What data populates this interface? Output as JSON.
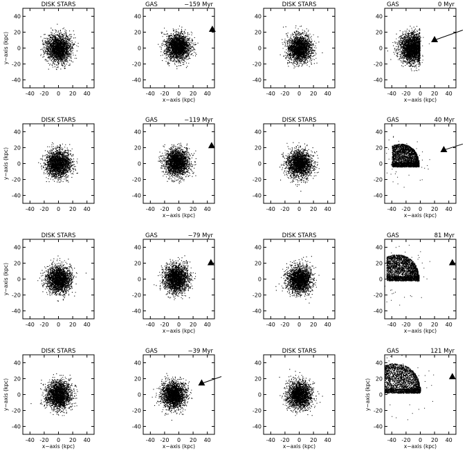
{
  "figure": {
    "x_axis_label": "x−axis (kpc)",
    "y_axis_label": "y−axis (kpc)"
  },
  "chart_data": [
    {
      "row": 0,
      "col": 0,
      "type": "scatter",
      "title": "DISK STARS",
      "time": "",
      "xlim": [
        -50,
        50
      ],
      "ylim": [
        -50,
        50
      ],
      "xticks": [
        -40,
        -20,
        0,
        20,
        40
      ],
      "yticks": [
        -40,
        -20,
        0,
        20,
        40
      ],
      "xlabel": "",
      "ylabel": "y−axis (kpc)",
      "blob": {
        "shape": "disk",
        "cx": 0,
        "cy": 0,
        "r": 15
      }
    },
    {
      "row": 0,
      "col": 1,
      "type": "scatter",
      "title": "GAS",
      "time": "−159 Myr",
      "xlim": [
        -50,
        50
      ],
      "ylim": [
        -50,
        50
      ],
      "xticks": [
        -40,
        -20,
        0,
        20,
        40
      ],
      "yticks": [
        -40,
        -20,
        0,
        20,
        40
      ],
      "xlabel": "x−axis (kpc)",
      "ylabel": "",
      "blob": {
        "shape": "disk",
        "cx": -2,
        "cy": 2,
        "r": 15
      },
      "perturber": {
        "x": 47,
        "y": 23
      }
    },
    {
      "row": 0,
      "col": 2,
      "type": "scatter",
      "title": "DISK STARS",
      "time": "",
      "xlim": [
        -50,
        50
      ],
      "ylim": [
        -50,
        50
      ],
      "xticks": [
        -40,
        -20,
        0,
        20,
        40
      ],
      "yticks": [
        -40,
        -20,
        0,
        20,
        40
      ],
      "xlabel": "",
      "ylabel": "",
      "blob": {
        "shape": "disk",
        "cx": 0,
        "cy": 0,
        "r": 15
      }
    },
    {
      "row": 0,
      "col": 3,
      "type": "scatter",
      "title": "GAS",
      "time": "0 Myr",
      "xlim": [
        -50,
        50
      ],
      "ylim": [
        -50,
        50
      ],
      "xticks": [
        -40,
        -20,
        0,
        20,
        40
      ],
      "yticks": [
        -40,
        -20,
        0,
        20,
        40
      ],
      "xlabel": "x−axis (kpc)",
      "ylabel": "",
      "blob": {
        "shape": "compressed",
        "cx": -12,
        "cy": 0,
        "r": 16
      },
      "perturber": {
        "x": 20,
        "y": 10
      },
      "trail": {
        "x": 50,
        "y": 20
      }
    },
    {
      "row": 1,
      "col": 0,
      "type": "scatter",
      "title": "DISK STARS",
      "time": "",
      "xlim": [
        -50,
        50
      ],
      "ylim": [
        -50,
        50
      ],
      "xticks": [
        -40,
        -20,
        0,
        20,
        40
      ],
      "yticks": [
        -40,
        -20,
        0,
        20,
        40
      ],
      "xlabel": "",
      "ylabel": "y−axis (kpc)",
      "blob": {
        "shape": "disk",
        "cx": 0,
        "cy": 0,
        "r": 15
      }
    },
    {
      "row": 1,
      "col": 1,
      "type": "scatter",
      "title": "GAS",
      "time": "−119 Myr",
      "xlim": [
        -50,
        50
      ],
      "ylim": [
        -50,
        50
      ],
      "xticks": [
        -40,
        -20,
        0,
        20,
        40
      ],
      "yticks": [
        -40,
        -20,
        0,
        20,
        40
      ],
      "xlabel": "x−axis (kpc)",
      "ylabel": "",
      "blob": {
        "shape": "disk",
        "cx": -3,
        "cy": 2,
        "r": 15
      },
      "perturber": {
        "x": 46,
        "y": 22
      }
    },
    {
      "row": 1,
      "col": 2,
      "type": "scatter",
      "title": "DISK STARS",
      "time": "",
      "xlim": [
        -50,
        50
      ],
      "ylim": [
        -50,
        50
      ],
      "xticks": [
        -40,
        -20,
        0,
        20,
        40
      ],
      "yticks": [
        -40,
        -20,
        0,
        20,
        40
      ],
      "xlabel": "",
      "ylabel": "",
      "blob": {
        "shape": "disk",
        "cx": 0,
        "cy": 0,
        "r": 15
      }
    },
    {
      "row": 1,
      "col": 3,
      "type": "scatter",
      "title": "GAS",
      "time": "40 Myr",
      "xlim": [
        -50,
        50
      ],
      "ylim": [
        -50,
        50
      ],
      "xticks": [
        -40,
        -20,
        0,
        20,
        40
      ],
      "yticks": [
        -40,
        -20,
        0,
        20,
        40
      ],
      "xlabel": "x−axis (kpc)",
      "ylabel": "",
      "blob": {
        "shape": "swept",
        "cx": -22,
        "cy": 4,
        "r": 20
      },
      "perturber": {
        "x": 33,
        "y": 17
      },
      "trail": {
        "x": 50,
        "y": 22
      }
    },
    {
      "row": 2,
      "col": 0,
      "type": "scatter",
      "title": "DISK STARS",
      "time": "",
      "xlim": [
        -50,
        50
      ],
      "ylim": [
        -50,
        50
      ],
      "xticks": [
        -40,
        -20,
        0,
        20,
        40
      ],
      "yticks": [
        -40,
        -20,
        0,
        20,
        40
      ],
      "xlabel": "",
      "ylabel": "y−axis (kpc)",
      "blob": {
        "shape": "disk",
        "cx": 0,
        "cy": 0,
        "r": 15
      }
    },
    {
      "row": 2,
      "col": 1,
      "type": "scatter",
      "title": "GAS",
      "time": "−79 Myr",
      "xlim": [
        -50,
        50
      ],
      "ylim": [
        -50,
        50
      ],
      "xticks": [
        -40,
        -20,
        0,
        20,
        40
      ],
      "yticks": [
        -40,
        -20,
        0,
        20,
        40
      ],
      "xlabel": "x−axis (kpc)",
      "ylabel": "",
      "blob": {
        "shape": "disk",
        "cx": -4,
        "cy": 1,
        "r": 15
      },
      "perturber": {
        "x": 45,
        "y": 20
      }
    },
    {
      "row": 2,
      "col": 2,
      "type": "scatter",
      "title": "DISK STARS",
      "time": "",
      "xlim": [
        -50,
        50
      ],
      "ylim": [
        -50,
        50
      ],
      "xticks": [
        -40,
        -20,
        0,
        20,
        40
      ],
      "yticks": [
        -40,
        -20,
        0,
        20,
        40
      ],
      "xlabel": "",
      "ylabel": "",
      "blob": {
        "shape": "disk",
        "cx": 0,
        "cy": 0,
        "r": 15
      }
    },
    {
      "row": 2,
      "col": 3,
      "type": "scatter",
      "title": "GAS",
      "time": "81 Myr",
      "xlim": [
        -50,
        50
      ],
      "ylim": [
        -50,
        50
      ],
      "xticks": [
        -40,
        -20,
        0,
        20,
        40
      ],
      "yticks": [
        -40,
        -20,
        0,
        20,
        40
      ],
      "xlabel": "x−axis (kpc)",
      "ylabel": "",
      "blob": {
        "shape": "swept",
        "cx": -26,
        "cy": 6,
        "r": 24
      },
      "perturber": {
        "x": 45,
        "y": 20
      }
    },
    {
      "row": 3,
      "col": 0,
      "type": "scatter",
      "title": "DISK STARS",
      "time": "",
      "xlim": [
        -50,
        50
      ],
      "ylim": [
        -50,
        50
      ],
      "xticks": [
        -40,
        -20,
        0,
        20,
        40
      ],
      "yticks": [
        -40,
        -20,
        0,
        20,
        40
      ],
      "xlabel": "x−axis (kpc)",
      "ylabel": "y−axis (kpc)",
      "blob": {
        "shape": "disk",
        "cx": 0,
        "cy": 0,
        "r": 15
      }
    },
    {
      "row": 3,
      "col": 1,
      "type": "scatter",
      "title": "GAS",
      "time": "−39 Myr",
      "xlim": [
        -50,
        50
      ],
      "ylim": [
        -50,
        50
      ],
      "xticks": [
        -40,
        -20,
        0,
        20,
        40
      ],
      "yticks": [
        -40,
        -20,
        0,
        20,
        40
      ],
      "xlabel": "x−axis (kpc)",
      "ylabel": "",
      "blob": {
        "shape": "disk",
        "cx": -8,
        "cy": 0,
        "r": 15
      },
      "perturber": {
        "x": 32,
        "y": 14
      },
      "trail": {
        "x": 50,
        "y": 20
      }
    },
    {
      "row": 3,
      "col": 2,
      "type": "scatter",
      "title": "DISK STARS",
      "time": "",
      "xlim": [
        -50,
        50
      ],
      "ylim": [
        -50,
        50
      ],
      "xticks": [
        -40,
        -20,
        0,
        20,
        40
      ],
      "yticks": [
        -40,
        -20,
        0,
        20,
        40
      ],
      "xlabel": "x−axis (kpc)",
      "ylabel": "",
      "blob": {
        "shape": "disk",
        "cx": 0,
        "cy": 0,
        "r": 15
      }
    },
    {
      "row": 3,
      "col": 3,
      "type": "scatter",
      "title": "GAS",
      "time": "121 Myr",
      "xlim": [
        -50,
        50
      ],
      "ylim": [
        -50,
        50
      ],
      "xticks": [
        -40,
        -20,
        0,
        20,
        40
      ],
      "yticks": [
        -40,
        -20,
        0,
        20,
        40
      ],
      "xlabel": "x−axis (kpc)",
      "ylabel": "y−axis (kpc)",
      "blob": {
        "shape": "swept",
        "cx": -28,
        "cy": 10,
        "r": 28
      },
      "perturber": {
        "x": 45,
        "y": 22
      }
    }
  ]
}
